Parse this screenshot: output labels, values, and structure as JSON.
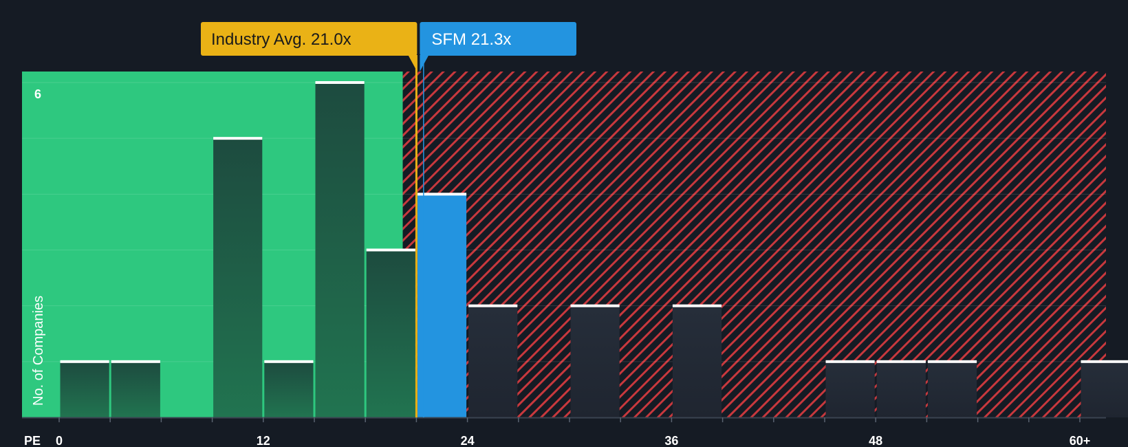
{
  "chart_data": {
    "type": "bar",
    "x_axis_label": "PE",
    "y_axis_label": "No. of Companies",
    "x_ticks": [
      "0",
      "12",
      "24",
      "36",
      "48",
      "60+"
    ],
    "x_tick_values": [
      0,
      12,
      24,
      36,
      48,
      60
    ],
    "y_tick_label": "6",
    "y_tick_value": 6,
    "ylim": [
      0,
      6.2
    ],
    "bin_width": 3,
    "bins": [
      {
        "start": 0,
        "count": 1
      },
      {
        "start": 3,
        "count": 1
      },
      {
        "start": 9,
        "count": 5
      },
      {
        "start": 12,
        "count": 1
      },
      {
        "start": 15,
        "count": 6
      },
      {
        "start": 18,
        "count": 3
      },
      {
        "start": 21,
        "count": 4,
        "highlight": true
      },
      {
        "start": 24,
        "count": 2
      },
      {
        "start": 30,
        "count": 2
      },
      {
        "start": 36,
        "count": 2
      },
      {
        "start": 45,
        "count": 1
      },
      {
        "start": 48,
        "count": 1
      },
      {
        "start": 51,
        "count": 1
      },
      {
        "start": 60,
        "count": 1
      }
    ],
    "industry_avg": {
      "label": "Industry Avg. 21.0x",
      "value": 21.0
    },
    "company": {
      "label": "SFM 21.3x",
      "value": 21.3
    },
    "grid": true,
    "colors": {
      "background": "#151b24",
      "below_avg_zone": "#2ec87f",
      "above_avg_zone_stripe": "#c8383d",
      "bar_in_green": "#1e4a3e",
      "bar_in_red": "#232a35",
      "bar_cap": "#ffffff",
      "highlight_bar": "#2394e0",
      "industry_callout": "#eab216",
      "company_callout": "#2394e0"
    }
  }
}
